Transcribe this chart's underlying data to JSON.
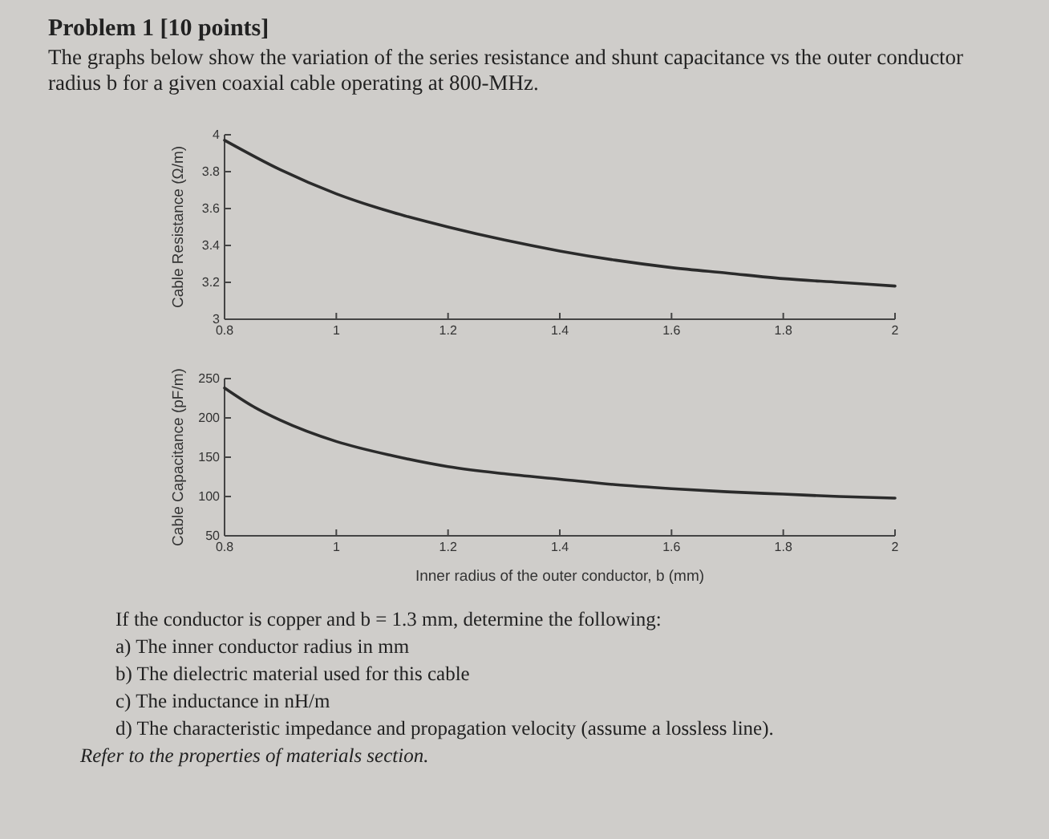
{
  "chart_data": [
    {
      "type": "line",
      "title": "Problem 1 [10 points]",
      "subtitle": "The graphs below show the variation of the series resistance and shunt capacitance vs the outer conductor radius b for a given coaxial cable operating at 800-MHz.",
      "ylabel": "Cable Resistance (Ω/m)",
      "x": [
        0.8,
        0.9,
        1.0,
        1.1,
        1.2,
        1.3,
        1.4,
        1.5,
        1.6,
        1.7,
        1.8,
        1.9,
        2.0
      ],
      "series": [
        {
          "color": "#2b2b2b",
          "values": [
            3.97,
            3.81,
            3.68,
            3.58,
            3.5,
            3.43,
            3.37,
            3.32,
            3.28,
            3.25,
            3.22,
            3.2,
            3.18
          ]
        }
      ],
      "xlim": [
        0.8,
        2
      ],
      "xticks": [
        0.8,
        1,
        1.2,
        1.4,
        1.6,
        1.8,
        2
      ],
      "ylim": [
        3,
        4
      ],
      "yticks": [
        3,
        3.2,
        3.4,
        3.6,
        3.8,
        4
      ],
      "grid": false,
      "marker": "none",
      "line_style": "solid"
    },
    {
      "type": "line",
      "xlabel": "Inner radius of the outer conductor, b (mm)",
      "ylabel": "Cable Capacitance (pF/m)",
      "x": [
        0.8,
        0.85,
        0.9,
        1.0,
        1.1,
        1.2,
        1.3,
        1.4,
        1.5,
        1.6,
        1.7,
        1.8,
        1.9,
        2.0
      ],
      "series": [
        {
          "color": "#2b2b2b",
          "values": [
            238,
            215,
            197,
            170,
            152,
            138,
            129,
            122,
            115,
            110,
            106,
            103,
            100,
            98
          ]
        }
      ],
      "xlim": [
        0.8,
        2
      ],
      "xticks": [
        0.8,
        1,
        1.2,
        1.4,
        1.6,
        1.8,
        2
      ],
      "ylim": [
        50,
        250
      ],
      "yticks": [
        50,
        100,
        150,
        200,
        250
      ],
      "grid": false,
      "marker": "none",
      "line_style": "solid",
      "annotations": [
        "If the conductor is copper and b = 1.3 mm, determine the following:",
        "a) The inner conductor radius in mm",
        "b) The dielectric material used for this cable",
        "c) The inductance in nH/m",
        "d) The characteristic impedance and propagation velocity (assume a lossless line).",
        "Refer to the properties of materials section."
      ]
    }
  ]
}
